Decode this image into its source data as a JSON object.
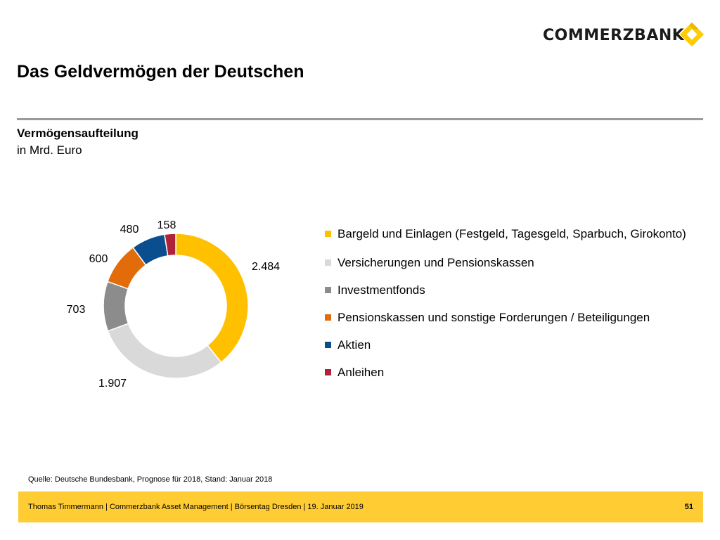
{
  "brand": {
    "name": "COMMERZBANK",
    "logo_color": "#ffcc00"
  },
  "slide": {
    "title": "Das Geldvermögen der Deutschen",
    "subtitle": "Vermögensaufteilung",
    "unit": "in Mrd. Euro",
    "source": "Quelle: Deutsche Bundesbank, Prognose für 2018, Stand: Januar 2018"
  },
  "footer": {
    "text": "Thomas Timmermann | Commerzbank Asset Management | Börsentag Dresden | 19. Januar 2019",
    "page": "51"
  },
  "chart_data": {
    "type": "pie",
    "variant": "donut",
    "title": "",
    "legend_position": "right",
    "categories": [
      "Bargeld und Einlagen (Festgeld, Tagesgeld, Sparbuch, Girokonto)",
      "Versicherungen und Pensionskassen",
      "Investmentfonds",
      "Pensionskassen und sonstige Forderungen / Beteiligungen",
      "Aktien",
      "Anleihen"
    ],
    "values": [
      2484,
      1907,
      703,
      600,
      480,
      158
    ],
    "value_labels": [
      "2.484",
      "1.907",
      "703",
      "600",
      "480",
      "158"
    ],
    "colors": [
      "#ffc000",
      "#d9d9d9",
      "#8c8c8c",
      "#e26b0a",
      "#0b4e8f",
      "#b0213a"
    ]
  }
}
